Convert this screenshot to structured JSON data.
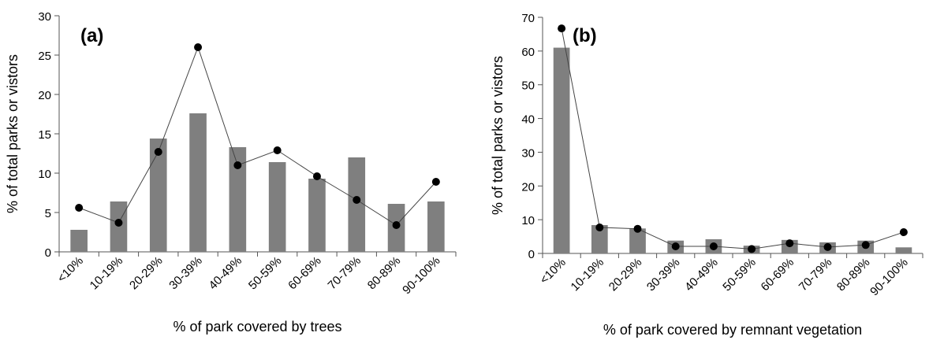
{
  "chart_data": [
    {
      "type": "bar",
      "panel_label": "(a)",
      "categories": [
        "<10%",
        "10-19%",
        "20-29%",
        "30-39%",
        "40-49%",
        "50-59%",
        "60-69%",
        "70-79%",
        "80-89%",
        "90-100%"
      ],
      "series": [
        {
          "type": "bar",
          "values": [
            2.8,
            6.4,
            14.4,
            17.6,
            13.3,
            11.4,
            9.3,
            12.0,
            6.1,
            6.4
          ],
          "color": "#7f7f7f"
        },
        {
          "type": "line",
          "values": [
            5.6,
            3.7,
            12.7,
            26.0,
            11.0,
            12.9,
            9.6,
            6.6,
            3.4,
            8.9
          ],
          "color": "#000000"
        }
      ],
      "xlabel": "% of park covered by trees",
      "ylabel": "% of total parks or vistors",
      "ylim": [
        0,
        30
      ],
      "yticks": [
        0,
        5,
        10,
        15,
        20,
        25,
        30
      ],
      "grid": false
    },
    {
      "type": "bar",
      "panel_label": "(b)",
      "categories": [
        "<10%",
        "10-19%",
        "20-29%",
        "30-39%",
        "40-49%",
        "50-59%",
        "60-69%",
        "70-79%",
        "80-89%",
        "90-100%"
      ],
      "series": [
        {
          "type": "bar",
          "values": [
            61.0,
            8.4,
            7.4,
            3.8,
            4.2,
            2.3,
            4.0,
            3.3,
            3.8,
            1.8
          ],
          "color": "#7f7f7f"
        },
        {
          "type": "line",
          "values": [
            66.7,
            7.7,
            7.3,
            2.1,
            2.1,
            1.3,
            3.0,
            1.9,
            2.5,
            6.3
          ],
          "color": "#000000"
        }
      ],
      "xlabel": "% of park covered by remnant vegetation",
      "ylabel": "% of total parks or vistors",
      "ylim": [
        0,
        70
      ],
      "yticks": [
        0,
        10,
        20,
        30,
        40,
        50,
        60,
        70
      ],
      "grid": false
    }
  ]
}
